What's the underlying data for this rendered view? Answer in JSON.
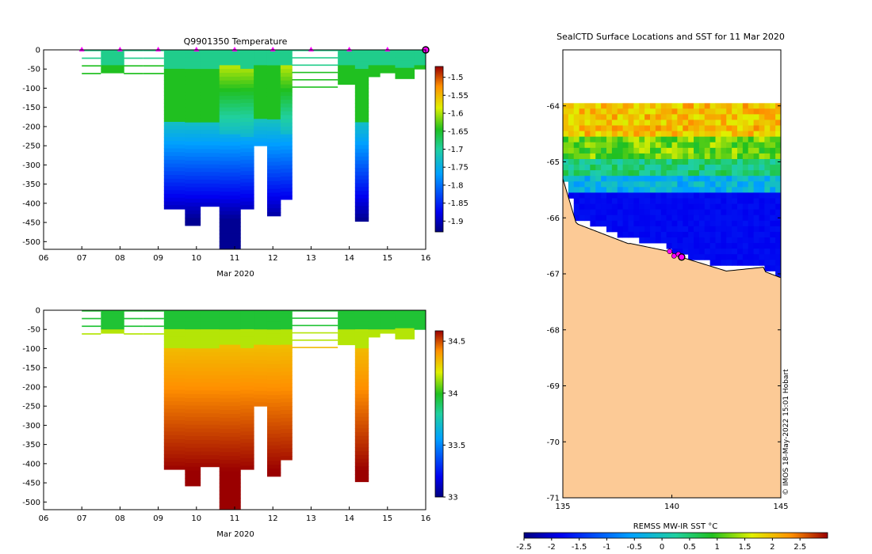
{
  "chart_data": [
    {
      "type": "heatmap",
      "title": "Q9901350  Temperature",
      "xlabel": "Mar 2020",
      "ylabel": "",
      "x_ticks": [
        "06",
        "07",
        "08",
        "09",
        "10",
        "11",
        "12",
        "13",
        "14",
        "15",
        "16"
      ],
      "y_ticks": [
        "0",
        "-50",
        "-100",
        "-150",
        "-200",
        "-250",
        "-300",
        "-350",
        "-400",
        "-450",
        "-500"
      ],
      "x_range": [
        6,
        16
      ],
      "y_range": [
        0,
        -520
      ],
      "colorbar": {
        "ticks": [
          "-1.5",
          "-1.55",
          "-1.6",
          "-1.65",
          "-1.7",
          "-1.75",
          "-1.8",
          "-1.85",
          "-1.9"
        ],
        "range": [
          -1.93,
          -1.47
        ]
      },
      "surface_markers": [
        7,
        8,
        9,
        10,
        11,
        12,
        13,
        14,
        15
      ],
      "profiles": [
        {
          "t0": 7.0,
          "t1": 7.5,
          "depth": -80,
          "sparse": true
        },
        {
          "t0": 7.5,
          "t1": 8.1,
          "depth": -60,
          "sparse": false
        },
        {
          "t0": 8.1,
          "t1": 8.6,
          "depth": -80,
          "sparse": true
        },
        {
          "t0": 8.6,
          "t1": 9.15,
          "depth": -70,
          "sparse": true
        },
        {
          "t0": 9.15,
          "t1": 9.7,
          "depth": -415
        },
        {
          "t0": 9.7,
          "t1": 10.1,
          "depth": -458
        },
        {
          "t0": 10.1,
          "t1": 10.6,
          "depth": -408
        },
        {
          "t0": 10.6,
          "t1": 11.15,
          "depth": -520
        },
        {
          "t0": 11.15,
          "t1": 11.5,
          "depth": -415
        },
        {
          "t0": 11.5,
          "t1": 11.85,
          "depth": -250
        },
        {
          "t0": 11.85,
          "t1": 12.2,
          "depth": -433
        },
        {
          "t0": 12.2,
          "t1": 12.5,
          "depth": -390
        },
        {
          "t0": 12.5,
          "t1": 13.7,
          "depth": -105,
          "sparse": true
        },
        {
          "t0": 13.7,
          "t1": 14.15,
          "depth": -90
        },
        {
          "t0": 14.15,
          "t1": 14.5,
          "depth": -447
        },
        {
          "t0": 14.5,
          "t1": 14.8,
          "depth": -70
        },
        {
          "t0": 14.8,
          "t1": 15.2,
          "depth": -60
        },
        {
          "t0": 15.2,
          "t1": 15.7,
          "depth": -75
        },
        {
          "t0": 15.7,
          "t1": 16.0,
          "depth": -50
        }
      ]
    },
    {
      "type": "heatmap",
      "title": "",
      "xlabel": "Mar 2020",
      "ylabel": "",
      "x_ticks": [
        "06",
        "07",
        "08",
        "09",
        "10",
        "11",
        "12",
        "13",
        "14",
        "15",
        "16"
      ],
      "y_ticks": [
        "0",
        "-50",
        "-100",
        "-150",
        "-200",
        "-250",
        "-300",
        "-350",
        "-400",
        "-450",
        "-500"
      ],
      "x_range": [
        6,
        16
      ],
      "y_range": [
        0,
        -520
      ],
      "colorbar": {
        "ticks": [
          "34.5",
          "34",
          "33.5",
          "33"
        ],
        "range": [
          33.0,
          34.6
        ]
      }
    },
    {
      "type": "heatmap",
      "title": "SealCTD Surface Locations and SST for 11 Mar 2020",
      "xlabel": "",
      "ylabel": "",
      "x_ticks": [
        "135",
        "140",
        "145"
      ],
      "y_ticks": [
        "-64",
        "-65",
        "-66",
        "-67",
        "-68",
        "-69",
        "-70",
        "-71"
      ],
      "x_range": [
        135,
        145
      ],
      "y_range": [
        -63,
        -71
      ],
      "colorbar": {
        "label": "REMSS MW-IR SST °C",
        "ticks": [
          "-2.5",
          "-2",
          "-1.5",
          "-1",
          "-0.5",
          "0",
          "0.5",
          "1",
          "1.5",
          "2",
          "2.5"
        ],
        "range": [
          -2.5,
          3.0
        ]
      },
      "track_positions": [
        [
          139.9,
          -66.6
        ],
        [
          140.1,
          -66.68
        ],
        [
          140.3,
          -66.65
        ],
        [
          140.45,
          -66.7
        ]
      ],
      "watermark": "© IMOS 18-May-2022 15:01 Hobart"
    }
  ]
}
